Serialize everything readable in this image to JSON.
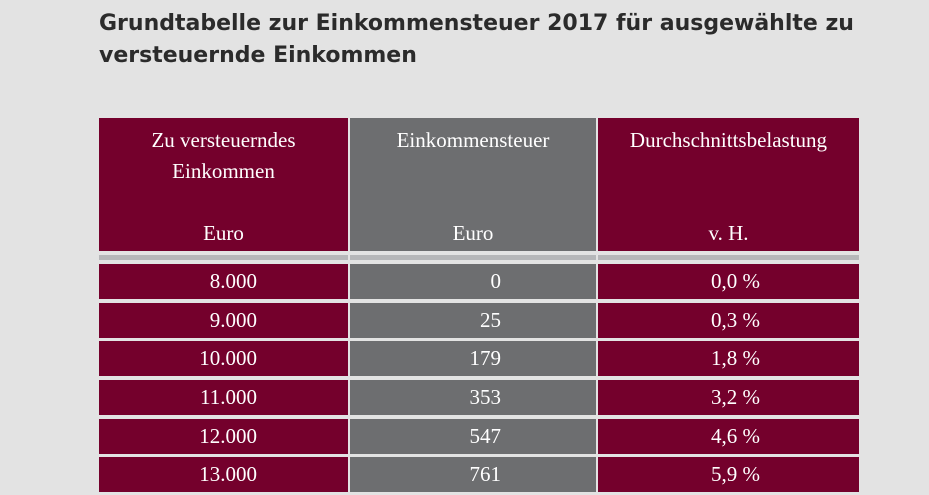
{
  "title": "Grundtabelle zur Einkommensteuer 2017 für ausgewählte zu versteuernde Einkommen",
  "colors": {
    "maroon": "#74002c",
    "gray": "#6d6e70",
    "background": "#e3e3e3"
  },
  "chart_data": {
    "type": "table",
    "columns": [
      {
        "label": "Zu versteuerndes\nEinkommen",
        "unit": "Euro"
      },
      {
        "label": "Einkommensteuer",
        "unit": "Euro"
      },
      {
        "label": "Durchschnittsbelastung",
        "unit": "v. H."
      }
    ],
    "rows": [
      [
        "8.000",
        "0",
        "0,0 %"
      ],
      [
        "9.000",
        "25",
        "0,3 %"
      ],
      [
        "10.000",
        "179",
        "1,8 %"
      ],
      [
        "11.000",
        "353",
        "3,2 %"
      ],
      [
        "12.000",
        "547",
        "4,6 %"
      ],
      [
        "13.000",
        "761",
        "5,9 %"
      ]
    ]
  }
}
